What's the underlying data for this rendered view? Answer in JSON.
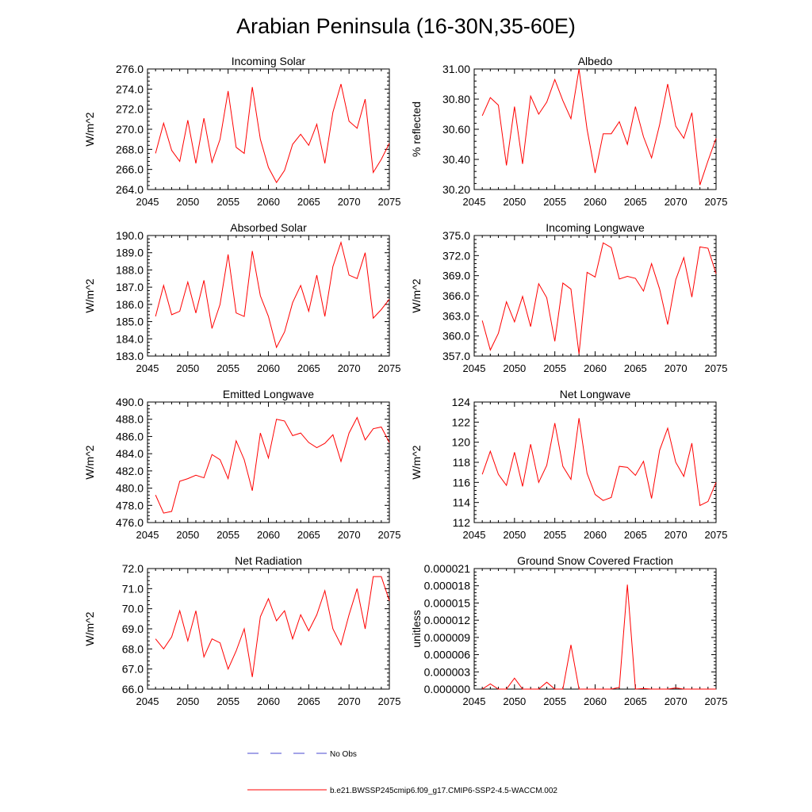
{
  "figure_title": "Arabian Peninsula (16-30N,35-60E)",
  "series_color": "#ff0000",
  "legend": {
    "no_obs_label": "No Obs",
    "no_obs_color": "#4a4ad0",
    "model_label": "b.e21.BWSSP245cmip6.f09_g17.CMIP6-SSP2-4.5-WACCM.002",
    "model_color": "#ff0000"
  },
  "chart_data": [
    {
      "type": "line",
      "title": "Incoming Solar",
      "ylabel": "W/m^2",
      "xlim": [
        2045,
        2075
      ],
      "ylim": [
        264,
        276
      ],
      "ydec": 1,
      "xticks": [
        2045,
        2050,
        2055,
        2060,
        2065,
        2070,
        2075
      ],
      "yticks": [
        264,
        266,
        268,
        270,
        272,
        274,
        276
      ],
      "x": [
        2046,
        2047,
        2048,
        2049,
        2050,
        2051,
        2052,
        2053,
        2054,
        2055,
        2056,
        2057,
        2058,
        2059,
        2060,
        2061,
        2062,
        2063,
        2064,
        2065,
        2066,
        2067,
        2068,
        2069,
        2070,
        2071,
        2072,
        2073,
        2074,
        2075
      ],
      "values": [
        267.6,
        270.6,
        267.9,
        266.8,
        270.9,
        266.6,
        271.1,
        266.7,
        269.0,
        273.8,
        268.2,
        267.6,
        274.2,
        269.0,
        266.2,
        264.7,
        265.9,
        268.5,
        269.5,
        268.4,
        270.5,
        266.6,
        271.7,
        274.5,
        270.8,
        270.1,
        273.0,
        265.7,
        267.0,
        268.6
      ]
    },
    {
      "type": "line",
      "title": "Albedo",
      "ylabel": "% reflected",
      "xlim": [
        2045,
        2075
      ],
      "ylim": [
        30.2,
        31.0
      ],
      "ydec": 2,
      "xticks": [
        2045,
        2050,
        2055,
        2060,
        2065,
        2070,
        2075
      ],
      "yticks": [
        30.2,
        30.4,
        30.6,
        30.8,
        31.0
      ],
      "x": [
        2046,
        2047,
        2048,
        2049,
        2050,
        2051,
        2052,
        2053,
        2054,
        2055,
        2056,
        2057,
        2058,
        2059,
        2060,
        2061,
        2062,
        2063,
        2064,
        2065,
        2066,
        2067,
        2068,
        2069,
        2070,
        2071,
        2072,
        2073,
        2074,
        2075
      ],
      "values": [
        30.69,
        30.81,
        30.76,
        30.36,
        30.75,
        30.37,
        30.82,
        30.7,
        30.78,
        30.93,
        30.79,
        30.67,
        31.0,
        30.6,
        30.31,
        30.57,
        30.57,
        30.65,
        30.5,
        30.75,
        30.55,
        30.41,
        30.63,
        30.9,
        30.62,
        30.54,
        30.71,
        30.23,
        30.39,
        30.54
      ]
    },
    {
      "type": "line",
      "title": "Absorbed Solar",
      "ylabel": "W/m^2",
      "xlim": [
        2045,
        2075
      ],
      "ylim": [
        183,
        190
      ],
      "ydec": 1,
      "xticks": [
        2045,
        2050,
        2055,
        2060,
        2065,
        2070,
        2075
      ],
      "yticks": [
        183,
        184,
        185,
        186,
        187,
        188,
        189,
        190
      ],
      "x": [
        2046,
        2047,
        2048,
        2049,
        2050,
        2051,
        2052,
        2053,
        2054,
        2055,
        2056,
        2057,
        2058,
        2059,
        2060,
        2061,
        2062,
        2063,
        2064,
        2065,
        2066,
        2067,
        2068,
        2069,
        2070,
        2071,
        2072,
        2073,
        2074,
        2075
      ],
      "values": [
        185.3,
        187.1,
        185.4,
        185.6,
        187.3,
        185.5,
        187.4,
        184.6,
        186.0,
        188.9,
        185.5,
        185.3,
        189.1,
        186.5,
        185.3,
        183.5,
        184.4,
        186.1,
        187.1,
        185.6,
        187.7,
        185.3,
        188.2,
        189.6,
        187.7,
        187.5,
        189.0,
        185.2,
        185.7,
        186.3
      ]
    },
    {
      "type": "line",
      "title": "Incoming Longwave",
      "ylabel": "W/m^2",
      "xlim": [
        2045,
        2075
      ],
      "ylim": [
        357,
        375
      ],
      "ydec": 1,
      "xticks": [
        2045,
        2050,
        2055,
        2060,
        2065,
        2070,
        2075
      ],
      "yticks": [
        357,
        360,
        363,
        366,
        369,
        372,
        375
      ],
      "x": [
        2046,
        2047,
        2048,
        2049,
        2050,
        2051,
        2052,
        2053,
        2054,
        2055,
        2056,
        2057,
        2058,
        2059,
        2060,
        2061,
        2062,
        2063,
        2064,
        2065,
        2066,
        2067,
        2068,
        2069,
        2070,
        2071,
        2072,
        2073,
        2074,
        2075
      ],
      "values": [
        362.3,
        357.9,
        360.4,
        365.1,
        362.1,
        365.9,
        361.4,
        367.8,
        365.7,
        359.2,
        367.9,
        367.0,
        357.3,
        369.5,
        368.8,
        373.9,
        373.2,
        368.5,
        368.9,
        368.6,
        366.7,
        370.8,
        367.0,
        361.7,
        368.4,
        371.7,
        365.8,
        373.3,
        373.1,
        369.3
      ]
    },
    {
      "type": "line",
      "title": "Emitted Longwave",
      "ylabel": "W/m^2",
      "xlim": [
        2045,
        2075
      ],
      "ylim": [
        476,
        490
      ],
      "ydec": 1,
      "xticks": [
        2045,
        2050,
        2055,
        2060,
        2065,
        2070,
        2075
      ],
      "yticks": [
        476,
        478,
        480,
        482,
        484,
        486,
        488,
        490
      ],
      "x": [
        2046,
        2047,
        2048,
        2049,
        2050,
        2051,
        2052,
        2053,
        2054,
        2055,
        2056,
        2057,
        2058,
        2059,
        2060,
        2061,
        2062,
        2063,
        2064,
        2065,
        2066,
        2067,
        2068,
        2069,
        2070,
        2071,
        2072,
        2073,
        2074,
        2075
      ],
      "values": [
        479.2,
        477.1,
        477.3,
        480.8,
        481.1,
        481.5,
        481.2,
        483.9,
        483.3,
        481.1,
        485.5,
        483.3,
        479.7,
        486.4,
        483.5,
        488.0,
        487.8,
        486.1,
        486.4,
        485.3,
        484.7,
        485.2,
        486.2,
        483.1,
        486.4,
        488.2,
        485.6,
        486.9,
        487.1,
        485.3
      ]
    },
    {
      "type": "line",
      "title": "Net Longwave",
      "ylabel": "W/m^2",
      "xlim": [
        2045,
        2075
      ],
      "ylim": [
        112,
        124
      ],
      "ydec": 0,
      "xticks": [
        2045,
        2050,
        2055,
        2060,
        2065,
        2070,
        2075
      ],
      "yticks": [
        112,
        114,
        116,
        118,
        120,
        122,
        124
      ],
      "x": [
        2046,
        2047,
        2048,
        2049,
        2050,
        2051,
        2052,
        2053,
        2054,
        2055,
        2056,
        2057,
        2058,
        2059,
        2060,
        2061,
        2062,
        2063,
        2064,
        2065,
        2066,
        2067,
        2068,
        2069,
        2070,
        2071,
        2072,
        2073,
        2074,
        2075
      ],
      "values": [
        116.8,
        119.1,
        116.8,
        115.7,
        119.0,
        115.6,
        119.8,
        116.0,
        117.7,
        121.9,
        117.6,
        116.3,
        122.4,
        116.9,
        114.8,
        114.2,
        114.5,
        117.6,
        117.5,
        116.7,
        118.1,
        114.4,
        119.2,
        121.4,
        118.0,
        116.6,
        119.9,
        113.7,
        114.1,
        116.0
      ]
    },
    {
      "type": "line",
      "title": "Net Radiation",
      "ylabel": "W/m^2",
      "xlim": [
        2045,
        2075
      ],
      "ylim": [
        66,
        72
      ],
      "ydec": 1,
      "xticks": [
        2045,
        2050,
        2055,
        2060,
        2065,
        2070,
        2075
      ],
      "yticks": [
        66,
        67,
        68,
        69,
        70,
        71,
        72
      ],
      "x": [
        2046,
        2047,
        2048,
        2049,
        2050,
        2051,
        2052,
        2053,
        2054,
        2055,
        2056,
        2057,
        2058,
        2059,
        2060,
        2061,
        2062,
        2063,
        2064,
        2065,
        2066,
        2067,
        2068,
        2069,
        2070,
        2071,
        2072,
        2073,
        2074,
        2075
      ],
      "values": [
        68.5,
        68.0,
        68.6,
        69.9,
        68.4,
        69.9,
        67.6,
        68.5,
        68.3,
        67.0,
        67.9,
        69.0,
        66.6,
        69.6,
        70.5,
        69.4,
        69.9,
        68.5,
        69.7,
        68.9,
        69.7,
        70.9,
        69.0,
        68.2,
        69.7,
        71.0,
        69.0,
        71.6,
        71.6,
        70.4
      ]
    },
    {
      "type": "line",
      "title": "Ground Snow Covered Fraction",
      "ylabel": "unitless",
      "xlim": [
        2045,
        2075
      ],
      "ylim": [
        0,
        2.1e-05
      ],
      "ydec": 6,
      "xticks": [
        2045,
        2050,
        2055,
        2060,
        2065,
        2070,
        2075
      ],
      "yticks": [
        0,
        3e-06,
        6e-06,
        9e-06,
        1.2e-05,
        1.5e-05,
        1.8e-05,
        2.1e-05
      ],
      "x": [
        2046,
        2047,
        2048,
        2049,
        2050,
        2051,
        2052,
        2053,
        2054,
        2055,
        2056,
        2057,
        2058,
        2059,
        2060,
        2061,
        2062,
        2063,
        2064,
        2065,
        2066,
        2067,
        2068,
        2069,
        2070,
        2071,
        2072,
        2073,
        2074,
        2075
      ],
      "values": [
        0,
        9e-07,
        0,
        0,
        1.9e-06,
        0,
        0,
        0,
        1.2e-06,
        0,
        0,
        7.7e-06,
        0,
        0,
        0,
        0,
        0,
        3e-07,
        1.82e-05,
        0,
        1e-07,
        0,
        0,
        0,
        2e-07,
        0,
        0,
        0,
        0,
        0
      ]
    }
  ]
}
